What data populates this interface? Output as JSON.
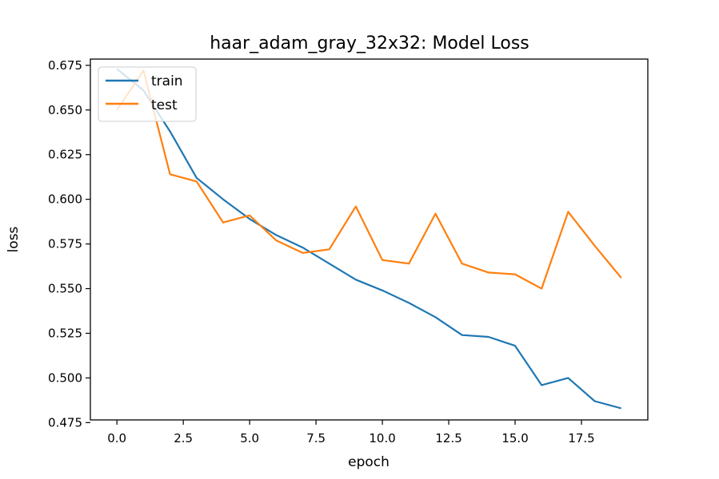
{
  "chart_data": {
    "type": "line",
    "title": "haar_adam_gray_32x32: Model Loss",
    "xlabel": "epoch",
    "ylabel": "loss",
    "xlim": [
      -1.0,
      20.0
    ],
    "ylim": [
      0.4765,
      0.6785
    ],
    "grid": false,
    "legend_position": "top-left",
    "x": [
      0,
      1,
      2,
      3,
      4,
      5,
      6,
      7,
      8,
      9,
      10,
      11,
      12,
      13,
      14,
      15,
      16,
      17,
      18,
      19
    ],
    "xticks": [
      0.0,
      2.5,
      5.0,
      7.5,
      10.0,
      12.5,
      15.0,
      17.5
    ],
    "xtick_labels": [
      "0.0",
      "2.5",
      "5.0",
      "7.5",
      "10.0",
      "12.5",
      "15.0",
      "17.5"
    ],
    "yticks": [
      0.475,
      0.5,
      0.525,
      0.55,
      0.575,
      0.6,
      0.625,
      0.65,
      0.675
    ],
    "ytick_labels": [
      "0.475",
      "0.500",
      "0.525",
      "0.550",
      "0.575",
      "0.600",
      "0.625",
      "0.650",
      "0.675"
    ],
    "series": [
      {
        "name": "train",
        "color": "#1f77b4",
        "values": [
          0.673,
          0.661,
          0.638,
          0.612,
          0.6,
          0.589,
          0.58,
          0.573,
          0.564,
          0.555,
          0.549,
          0.542,
          0.534,
          0.524,
          0.523,
          0.518,
          0.496,
          0.5,
          0.487,
          0.483
        ]
      },
      {
        "name": "test",
        "color": "#ff7f0e",
        "values": [
          0.65,
          0.672,
          0.614,
          0.61,
          0.587,
          0.591,
          0.577,
          0.57,
          0.572,
          0.596,
          0.566,
          0.564,
          0.592,
          0.564,
          0.559,
          0.558,
          0.55,
          0.593,
          0.574,
          0.556
        ]
      }
    ]
  }
}
